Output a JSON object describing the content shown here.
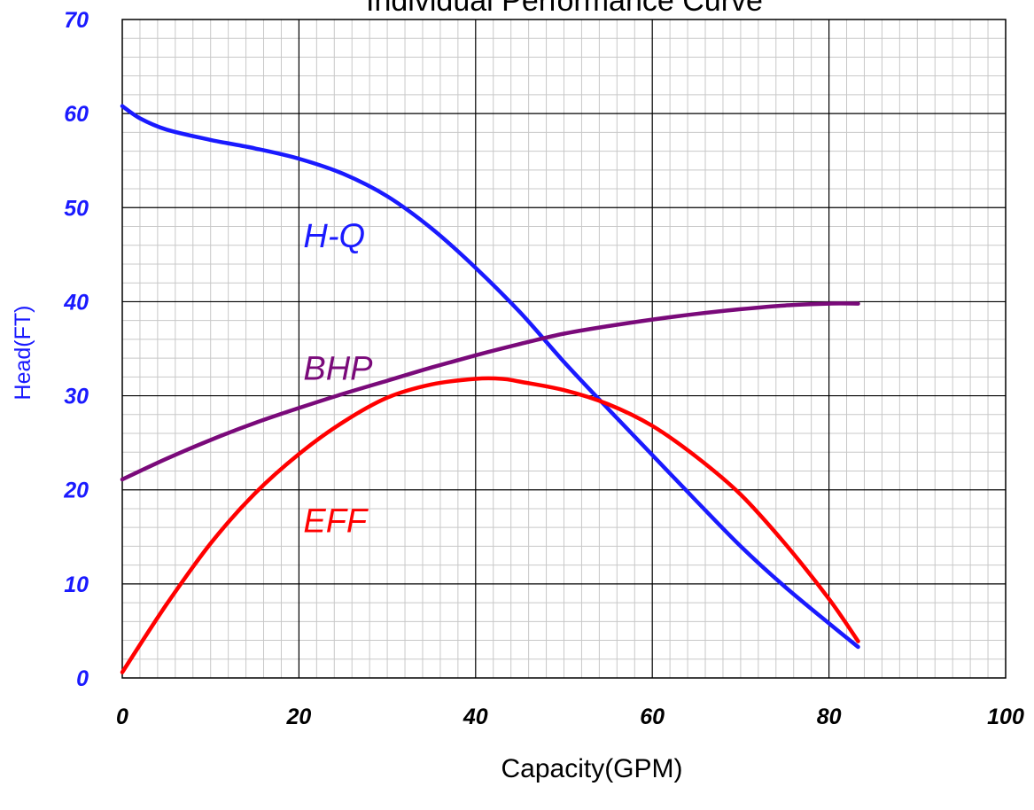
{
  "chart_data": {
    "type": "line",
    "title": "Individual Performance Curve",
    "xlabel": "Capacity(GPM)",
    "ylabel": "Head(FT)",
    "xlim": [
      0,
      100
    ],
    "ylim": [
      0,
      70
    ],
    "x_ticks": [
      0,
      20,
      40,
      60,
      80,
      100
    ],
    "y_ticks": [
      0,
      10,
      20,
      30,
      40,
      50,
      60,
      70
    ],
    "grid": true,
    "series": [
      {
        "name": "H-Q",
        "color": "#1a1aff",
        "points": [
          [
            0,
            60.8
          ],
          [
            2,
            59.5
          ],
          [
            5,
            58.3
          ],
          [
            10,
            57.2
          ],
          [
            15,
            56.3
          ],
          [
            20,
            55.2
          ],
          [
            25,
            53.6
          ],
          [
            30,
            51.2
          ],
          [
            35,
            47.8
          ],
          [
            40,
            43.6
          ],
          [
            45,
            38.9
          ],
          [
            50,
            33.6
          ],
          [
            55,
            28.6
          ],
          [
            60,
            23.7
          ],
          [
            65,
            18.8
          ],
          [
            70,
            14.0
          ],
          [
            75,
            9.7
          ],
          [
            80,
            5.8
          ],
          [
            83.3,
            3.3
          ]
        ]
      },
      {
        "name": "BHP",
        "color": "#7a0a7a",
        "points": [
          [
            0,
            21.1
          ],
          [
            5,
            23.3
          ],
          [
            10,
            25.3
          ],
          [
            15,
            27.1
          ],
          [
            20,
            28.7
          ],
          [
            25,
            30.2
          ],
          [
            30,
            31.6
          ],
          [
            35,
            33.0
          ],
          [
            40,
            34.3
          ],
          [
            45,
            35.5
          ],
          [
            50,
            36.6
          ],
          [
            55,
            37.4
          ],
          [
            60,
            38.1
          ],
          [
            65,
            38.7
          ],
          [
            70,
            39.2
          ],
          [
            75,
            39.6
          ],
          [
            80,
            39.8
          ],
          [
            83.3,
            39.8
          ]
        ]
      },
      {
        "name": "EFF",
        "color": "#ff0000",
        "points": [
          [
            0,
            0.6
          ],
          [
            5,
            7.8
          ],
          [
            10,
            14.3
          ],
          [
            15,
            19.6
          ],
          [
            20,
            23.8
          ],
          [
            25,
            27.2
          ],
          [
            30,
            29.8
          ],
          [
            35,
            31.2
          ],
          [
            40,
            31.8
          ],
          [
            43,
            31.8
          ],
          [
            45,
            31.5
          ],
          [
            50,
            30.6
          ],
          [
            55,
            29.1
          ],
          [
            60,
            26.8
          ],
          [
            65,
            23.5
          ],
          [
            70,
            19.5
          ],
          [
            75,
            14.3
          ],
          [
            80,
            8.4
          ],
          [
            83.3,
            3.9
          ]
        ]
      }
    ],
    "series_labels": [
      {
        "text": "H-Q",
        "x": 20.5,
        "y": 45.8,
        "color": "#1a1aff"
      },
      {
        "text": "BHP",
        "x": 20.5,
        "y": 31.7,
        "color": "#7a0a7a"
      },
      {
        "text": "EFF",
        "x": 20.5,
        "y": 15.5,
        "color": "#ff0000"
      }
    ]
  }
}
